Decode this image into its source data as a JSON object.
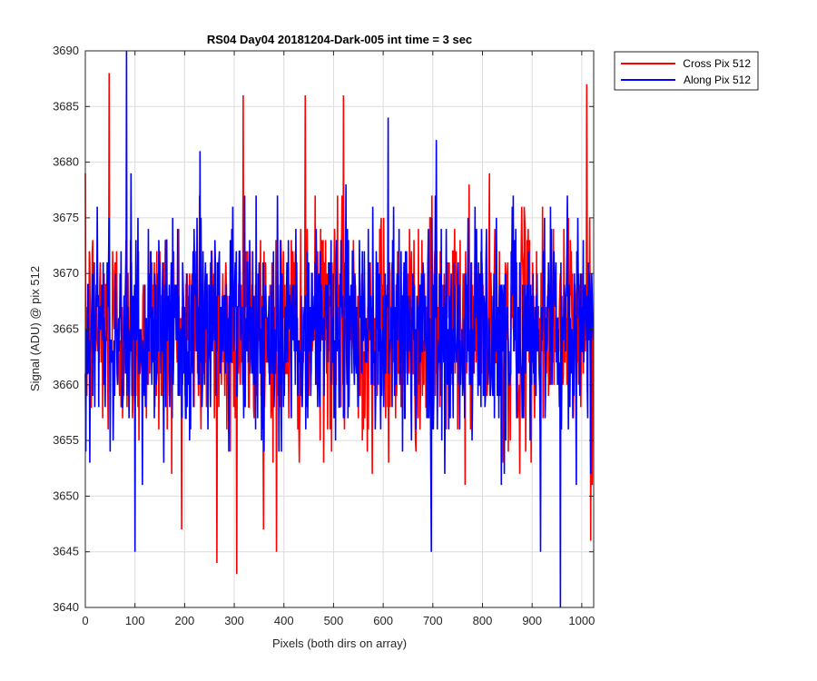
{
  "chart_data": {
    "type": "line",
    "title": "RS04 Day04 20181204-Dark-005 int time = 3 sec",
    "xlabel": "Pixels (both dirs on array)",
    "ylabel": "Signal (ADU) @ pix 512",
    "xlim": [
      0,
      1024
    ],
    "ylim": [
      3640,
      3690
    ],
    "xticks": [
      0,
      100,
      200,
      300,
      400,
      500,
      600,
      700,
      800,
      900,
      1000
    ],
    "yticks": [
      3640,
      3645,
      3650,
      3655,
      3660,
      3665,
      3670,
      3675,
      3680,
      3685,
      3690
    ],
    "grid": true,
    "legend_position": "outside-top-right",
    "noise_model": {
      "samples_per_series": 1024,
      "mean": 3665,
      "std": 5
    },
    "series": [
      {
        "name": "Cross Pix 512",
        "color": "#ff0000",
        "highlights": [
          {
            "x": 48,
            "y": 3688
          },
          {
            "x": 265,
            "y": 3644
          },
          {
            "x": 305,
            "y": 3643
          },
          {
            "x": 318,
            "y": 3686
          },
          {
            "x": 385,
            "y": 3645
          },
          {
            "x": 443,
            "y": 3686
          },
          {
            "x": 520,
            "y": 3686
          },
          {
            "x": 1010,
            "y": 3687
          },
          {
            "x": 1018,
            "y": 3646
          }
        ]
      },
      {
        "name": "Along Pix 512",
        "color": "#0000ff",
        "highlights": [
          {
            "x": 83,
            "y": 3690
          },
          {
            "x": 100,
            "y": 3645
          },
          {
            "x": 697,
            "y": 3645
          },
          {
            "x": 917,
            "y": 3645
          },
          {
            "x": 957,
            "y": 3640
          }
        ]
      }
    ]
  }
}
